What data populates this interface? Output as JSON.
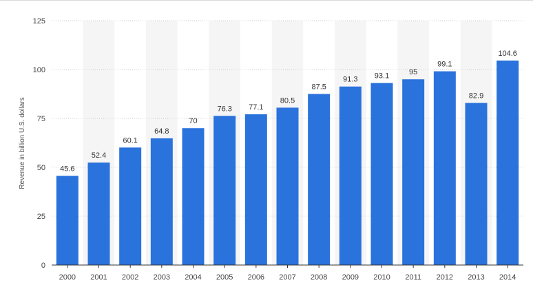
{
  "chart_data": {
    "type": "bar",
    "categories": [
      "2000",
      "2001",
      "2002",
      "2003",
      "2004",
      "2005",
      "2006",
      "2007",
      "2008",
      "2009",
      "2010",
      "2011",
      "2012",
      "2013",
      "2014"
    ],
    "values": [
      45.6,
      52.4,
      60.1,
      64.8,
      70,
      76.3,
      77.1,
      80.5,
      87.5,
      91.3,
      93.1,
      95,
      99.1,
      82.9,
      104.6
    ],
    "data_labels": [
      "45.6",
      "52.4",
      "60.1",
      "64.8",
      "70",
      "76.3",
      "77.1",
      "80.5",
      "87.5",
      "91.3",
      "93.1",
      "95",
      "99.1",
      "82.9",
      "104.6"
    ],
    "title": "",
    "xlabel": "",
    "ylabel": "Revenue in billion U.S. dollars",
    "ylim": [
      0,
      125
    ],
    "yticks": [
      0,
      25,
      50,
      75,
      100,
      125
    ],
    "ytick_labels": [
      "0",
      "25",
      "50",
      "75",
      "100",
      "125"
    ],
    "grid": true,
    "legend": "none",
    "colors": {
      "bar": "#2a72dc",
      "band": "#f5f5f5",
      "grid": "#cccccc",
      "axis": "#333333"
    }
  }
}
